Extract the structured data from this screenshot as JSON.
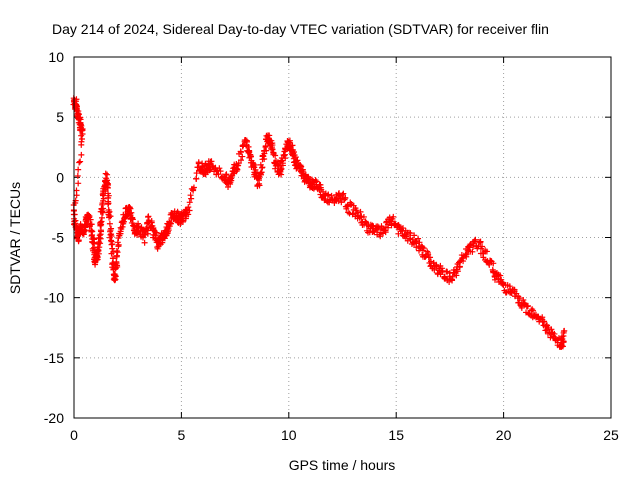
{
  "chart_data": {
    "type": "scatter",
    "title": "Day 214 of 2024, Sidereal Day-to-day VTEC variation (SDTVAR) for receiver flin",
    "xlabel": "GPS time / hours",
    "ylabel": "SDTVAR / TECUs",
    "xlim": [
      0,
      25
    ],
    "ylim": [
      -20,
      10
    ],
    "xticks": [
      0,
      5,
      10,
      15,
      20,
      25
    ],
    "yticks": [
      -20,
      -15,
      -10,
      -5,
      0,
      5,
      10
    ],
    "xtick_labels": [
      "0",
      "5",
      "10",
      "15",
      "20",
      "25"
    ],
    "ytick_labels": [
      "-20",
      "-15",
      "-10",
      "-5",
      "0",
      "5",
      "10"
    ],
    "grid": true,
    "marker": "+",
    "color": "#ff0000",
    "series": [
      {
        "name": "SDTVAR",
        "trace_knots": [
          [
            0.0,
            6.3
          ],
          [
            0.1,
            6.0
          ],
          [
            0.2,
            5.2
          ],
          [
            0.3,
            4.2
          ],
          [
            0.4,
            3.6
          ],
          [
            0.0,
            -3.0
          ],
          [
            0.1,
            -4.5
          ],
          [
            0.2,
            -5.0
          ],
          [
            0.3,
            -4.0
          ],
          [
            0.5,
            -4.5
          ],
          [
            0.6,
            -3.2
          ],
          [
            0.8,
            -4.0
          ],
          [
            0.9,
            -5.5
          ],
          [
            1.0,
            -7.0
          ],
          [
            1.1,
            -6.5
          ],
          [
            1.2,
            -5.0
          ],
          [
            1.3,
            -3.0
          ],
          [
            1.4,
            -1.0
          ],
          [
            1.5,
            0.0
          ],
          [
            1.6,
            -1.5
          ],
          [
            1.7,
            -4.5
          ],
          [
            1.8,
            -7.0
          ],
          [
            1.9,
            -8.5
          ],
          [
            2.0,
            -6.5
          ],
          [
            2.2,
            -4.0
          ],
          [
            2.4,
            -3.0
          ],
          [
            2.6,
            -2.5
          ],
          [
            2.8,
            -4.5
          ],
          [
            3.0,
            -4.2
          ],
          [
            3.3,
            -5.0
          ],
          [
            3.5,
            -3.5
          ],
          [
            3.7,
            -4.5
          ],
          [
            3.9,
            -5.5
          ],
          [
            4.1,
            -5.0
          ],
          [
            4.3,
            -4.5
          ],
          [
            4.5,
            -3.5
          ],
          [
            4.7,
            -3.0
          ],
          [
            4.9,
            -3.5
          ],
          [
            5.1,
            -3.2
          ],
          [
            5.3,
            -3.0
          ],
          [
            5.8,
            1.0
          ],
          [
            6.0,
            0.6
          ],
          [
            6.2,
            0.8
          ],
          [
            6.4,
            1.1
          ],
          [
            7.0,
            0.0
          ],
          [
            7.2,
            -0.5
          ],
          [
            7.4,
            0.5
          ],
          [
            7.6,
            1.0
          ],
          [
            8.0,
            3.0
          ],
          [
            8.2,
            2.0
          ],
          [
            8.4,
            0.5
          ],
          [
            8.6,
            -0.5
          ],
          [
            8.8,
            1.5
          ],
          [
            9.0,
            3.5
          ],
          [
            9.2,
            2.5
          ],
          [
            9.4,
            1.0
          ],
          [
            9.6,
            0.5
          ],
          [
            9.8,
            2.0
          ],
          [
            10.0,
            3.0
          ],
          [
            10.2,
            2.0
          ],
          [
            10.4,
            1.0
          ],
          [
            10.6,
            0.5
          ],
          [
            10.8,
            0.0
          ],
          [
            11.0,
            -0.5
          ],
          [
            11.3,
            -0.5
          ],
          [
            11.6,
            -1.5
          ],
          [
            12.0,
            -2.0
          ],
          [
            12.4,
            -1.5
          ],
          [
            12.8,
            -2.5
          ],
          [
            13.2,
            -3.0
          ],
          [
            13.6,
            -4.0
          ],
          [
            14.0,
            -4.5
          ],
          [
            14.4,
            -4.5
          ],
          [
            14.8,
            -3.5
          ],
          [
            15.2,
            -4.5
          ],
          [
            15.6,
            -5.0
          ],
          [
            16.0,
            -5.5
          ],
          [
            16.4,
            -6.5
          ],
          [
            16.8,
            -7.5
          ],
          [
            17.2,
            -8.0
          ],
          [
            17.6,
            -8.5
          ],
          [
            18.0,
            -7.0
          ],
          [
            18.4,
            -6.0
          ],
          [
            18.8,
            -5.5
          ],
          [
            19.2,
            -6.5
          ],
          [
            19.6,
            -8.0
          ],
          [
            20.0,
            -9.0
          ],
          [
            20.4,
            -9.5
          ],
          [
            20.8,
            -10.5
          ],
          [
            21.2,
            -11.0
          ],
          [
            21.6,
            -11.5
          ],
          [
            22.0,
            -12.5
          ],
          [
            22.4,
            -13.5
          ],
          [
            22.7,
            -14.0
          ],
          [
            22.8,
            -13.0
          ]
        ]
      }
    ]
  }
}
